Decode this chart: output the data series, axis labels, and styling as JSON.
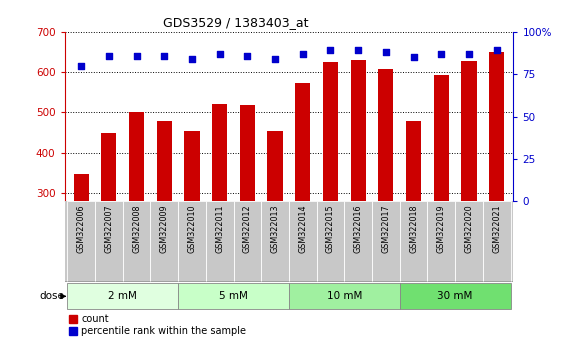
{
  "title": "GDS3529 / 1383403_at",
  "samples": [
    "GSM322006",
    "GSM322007",
    "GSM322008",
    "GSM322009",
    "GSM322010",
    "GSM322011",
    "GSM322012",
    "GSM322013",
    "GSM322014",
    "GSM322015",
    "GSM322016",
    "GSM322017",
    "GSM322018",
    "GSM322019",
    "GSM322020",
    "GSM322021"
  ],
  "bar_values": [
    348,
    449,
    502,
    479,
    455,
    522,
    518,
    455,
    572,
    624,
    629,
    608,
    479,
    592,
    628,
    651
  ],
  "percentile_values": [
    80,
    86,
    86,
    86,
    84,
    87,
    86,
    84,
    87,
    89,
    89,
    88,
    85,
    87,
    87,
    89
  ],
  "bar_color": "#cc0000",
  "percentile_color": "#0000cc",
  "ylim_left": [
    280,
    700
  ],
  "ylim_right": [
    0,
    100
  ],
  "yticks_left": [
    300,
    400,
    500,
    600,
    700
  ],
  "yticks_right": [
    0,
    25,
    50,
    75,
    100
  ],
  "doses": [
    {
      "label": "2 mM",
      "start": 0,
      "end": 4
    },
    {
      "label": "5 mM",
      "start": 4,
      "end": 8
    },
    {
      "label": "10 mM",
      "start": 8,
      "end": 12
    },
    {
      "label": "30 mM",
      "start": 12,
      "end": 16
    }
  ],
  "dose_row_colors": [
    "#e0ffe0",
    "#c8ffc8",
    "#a0f0a0",
    "#70e070"
  ],
  "bar_color_red": "#cc0000",
  "percentile_color_blue": "#0000cc",
  "ylabel_right_ticks": [
    "0",
    "25",
    "50",
    "75",
    "100%"
  ],
  "background_color": "#ffffff",
  "label_area_color": "#c8c8c8",
  "label_area_border": "#999999"
}
